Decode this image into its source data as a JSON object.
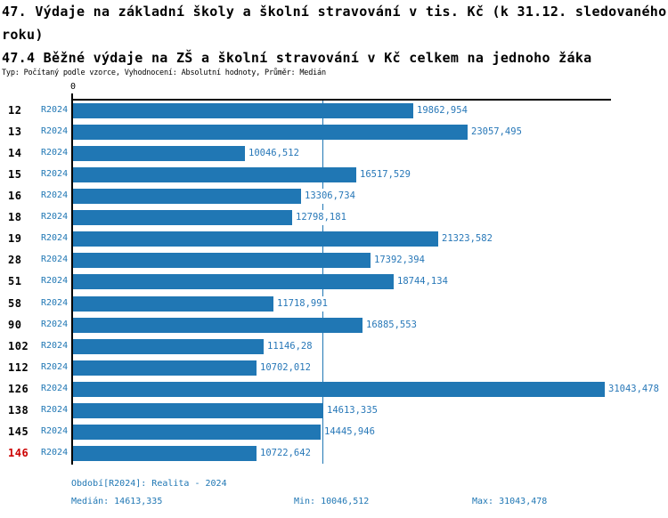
{
  "title": {
    "line1": "47. Výdaje na základní školy a školní stravování v tis. Kč (k 31.12. sledovaného",
    "line2": "roku)",
    "line3": "47.4 Běžné výdaje na ZŠ a školní stravování v Kč celkem na jednoho žáka",
    "subtitle": "Typ: Počítaný podle vzorce, Vyhodnocení: Absolutní hodnoty, Průměr: Medián"
  },
  "chart_data": {
    "type": "bar",
    "orientation": "horizontal",
    "axis_zero_label": "0",
    "period_label": "R2024",
    "categories": [
      "12",
      "13",
      "14",
      "15",
      "16",
      "18",
      "19",
      "28",
      "51",
      "58",
      "90",
      "102",
      "112",
      "126",
      "138",
      "145",
      "146"
    ],
    "values": [
      19862.954,
      23057.495,
      10046.512,
      16517.529,
      13306.734,
      12798.181,
      21323.582,
      17392.394,
      18744.134,
      11718.991,
      16885.553,
      11146.28,
      10702.012,
      31043.478,
      14613.335,
      14445.946,
      10722.642
    ],
    "value_labels": [
      "19862,954",
      "23057,495",
      "10046,512",
      "16517,529",
      "13306,734",
      "12798,181",
      "21323,582",
      "17392,394",
      "18744,134",
      "11718,991",
      "16885,553",
      "11146,28",
      "10702,012",
      "31043,478",
      "14613,335",
      "14445,946",
      "10722,642"
    ],
    "highlighted_category": "146",
    "median_value": 14613.335,
    "xlim": [
      0,
      31455
    ],
    "grid": false,
    "legend": "none",
    "bar_color": "#2077b4",
    "median_line_color": "#2077b4",
    "label_color": "#2878b8",
    "highlight_color": "#cc0000"
  },
  "footer": {
    "period_info": "Období[R2024]: Realita - 2024",
    "median": "Medián: 14613,335",
    "min": "Min: 10046,512",
    "max": "Max: 31043,478"
  }
}
